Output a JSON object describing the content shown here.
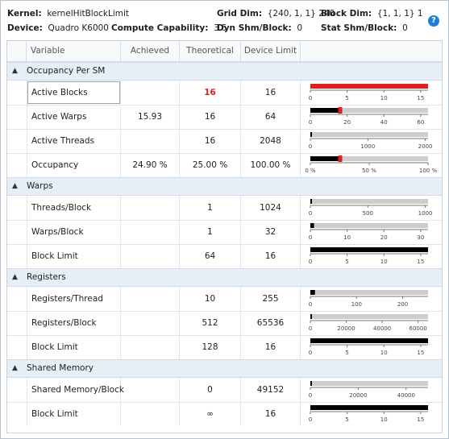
{
  "header": {
    "kernel_label": "Kernel:",
    "kernel_value": "kernelHitBlockLimit",
    "device_label": "Device:",
    "device_value": "Quadro K6000",
    "cc_label": "Compute Capability:",
    "cc_value": "3.5",
    "grid_label": "Grid Dim:",
    "grid_value": "{240, 1, 1} 240",
    "block_label": "Block Dim:",
    "block_value": "{1, 1, 1} 1",
    "dyn_label": "Dyn Shm/Block:",
    "dyn_value": "0",
    "stat_label": "Stat Shm/Block:",
    "stat_value": "0",
    "help_icon": "?"
  },
  "columns": {
    "variable": "Variable",
    "achieved": "Achieved",
    "theoretical": "Theoretical",
    "limit": "Device Limit"
  },
  "sections": [
    {
      "name": "Occupancy Per SM",
      "rows": [
        {
          "variable": "Active Blocks",
          "achieved": "",
          "theoretical": "16",
          "limit": "16",
          "highlight": true,
          "gauge": {
            "max": 16,
            "ticks": [
              "0",
              "5",
              "10",
              "15"
            ],
            "tick_vals": [
              0,
              5,
              10,
              15
            ],
            "theoretical": 16,
            "achieved": null,
            "red_full": true
          }
        },
        {
          "variable": "Active Warps",
          "achieved": "15.93",
          "theoretical": "16",
          "limit": "64",
          "gauge": {
            "max": 64,
            "ticks": [
              "0",
              "20",
              "40",
              "60"
            ],
            "tick_vals": [
              0,
              20,
              40,
              60
            ],
            "theoretical": 16,
            "achieved": 15.93,
            "marker": true
          }
        },
        {
          "variable": "Active Threads",
          "achieved": "",
          "theoretical": "16",
          "limit": "2048",
          "gauge": {
            "max": 2048,
            "ticks": [
              "0",
              "1000",
              "2000"
            ],
            "tick_vals": [
              0,
              1000,
              2000
            ],
            "theoretical": 16,
            "achieved": null
          }
        },
        {
          "variable": "Occupancy",
          "achieved": "24.90 %",
          "theoretical": "25.00 %",
          "limit": "100.00 %",
          "gauge": {
            "max": 100,
            "ticks": [
              "0 %",
              "50 %",
              "100 %"
            ],
            "tick_vals": [
              0,
              50,
              100
            ],
            "theoretical": 25,
            "achieved": 24.9,
            "marker": true
          }
        }
      ]
    },
    {
      "name": "Warps",
      "rows": [
        {
          "variable": "Threads/Block",
          "achieved": "",
          "theoretical": "1",
          "limit": "1024",
          "gauge": {
            "max": 1024,
            "ticks": [
              "0",
              "500",
              "1000"
            ],
            "tick_vals": [
              0,
              500,
              1000
            ],
            "theoretical": 1
          }
        },
        {
          "variable": "Warps/Block",
          "achieved": "",
          "theoretical": "1",
          "limit": "32",
          "gauge": {
            "max": 32,
            "ticks": [
              "0",
              "10",
              "20",
              "30"
            ],
            "tick_vals": [
              0,
              10,
              20,
              30
            ],
            "theoretical": 1
          }
        },
        {
          "variable": "Block Limit",
          "achieved": "",
          "theoretical": "64",
          "limit": "16",
          "gauge": {
            "max": 16,
            "ticks": [
              "0",
              "5",
              "10",
              "15"
            ],
            "tick_vals": [
              0,
              5,
              10,
              15
            ],
            "theoretical": 16,
            "black_full": true
          }
        }
      ]
    },
    {
      "name": "Registers",
      "rows": [
        {
          "variable": "Registers/Thread",
          "achieved": "",
          "theoretical": "10",
          "limit": "255",
          "gauge": {
            "max": 255,
            "ticks": [
              "0",
              "100",
              "200"
            ],
            "tick_vals": [
              0,
              100,
              200
            ],
            "theoretical": 10
          }
        },
        {
          "variable": "Registers/Block",
          "achieved": "",
          "theoretical": "512",
          "limit": "65536",
          "gauge": {
            "max": 65536,
            "ticks": [
              "0",
              "20000",
              "40000",
              "60000"
            ],
            "tick_vals": [
              0,
              20000,
              40000,
              60000
            ],
            "theoretical": 512
          }
        },
        {
          "variable": "Block Limit",
          "achieved": "",
          "theoretical": "128",
          "limit": "16",
          "gauge": {
            "max": 16,
            "ticks": [
              "0",
              "5",
              "10",
              "15"
            ],
            "tick_vals": [
              0,
              5,
              10,
              15
            ],
            "theoretical": 16,
            "black_full": true
          }
        }
      ]
    },
    {
      "name": "Shared Memory",
      "rows": [
        {
          "variable": "Shared Memory/Block",
          "achieved": "",
          "theoretical": "0",
          "limit": "49152",
          "gauge": {
            "max": 49152,
            "ticks": [
              "0",
              "20000",
              "40000"
            ],
            "tick_vals": [
              0,
              20000,
              40000
            ],
            "theoretical": 0
          }
        },
        {
          "variable": "Block Limit",
          "achieved": "",
          "theoretical": "∞",
          "limit": "16",
          "gauge": {
            "max": 16,
            "ticks": [
              "0",
              "5",
              "10",
              "15"
            ],
            "tick_vals": [
              0,
              5,
              10,
              15
            ],
            "theoretical": 16,
            "black_full": true
          }
        }
      ]
    }
  ],
  "colors": {
    "bar_bg": "#cdcdcd",
    "bar_fill": "#000000",
    "bar_red": "#e02020",
    "section_bg": "#e6eef8"
  }
}
